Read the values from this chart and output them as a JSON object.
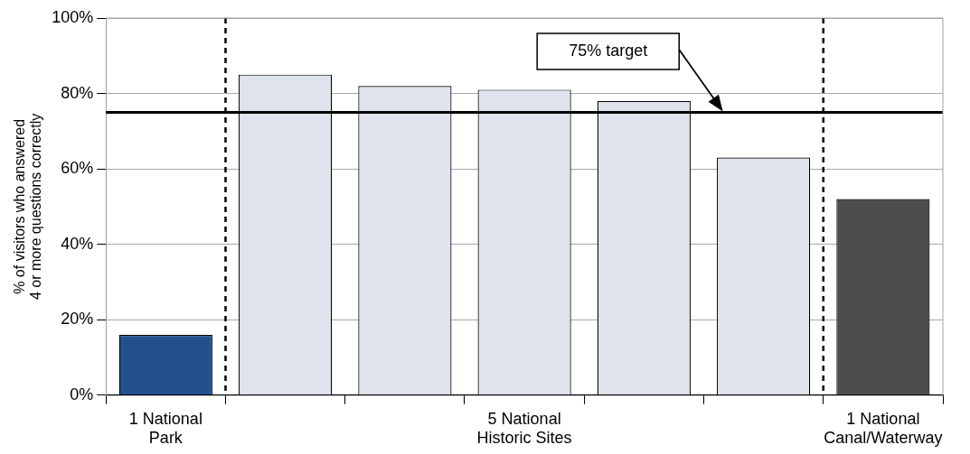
{
  "chart_data": {
    "type": "bar",
    "ylabel": "% of visitors who answered 4 or more questions correctly",
    "categories": [
      "1 National Park",
      null,
      null,
      "5 National Historic Sites",
      null,
      null,
      "1 National Canal/Waterway"
    ],
    "values": [
      16,
      85,
      82,
      81,
      78,
      63,
      52
    ],
    "colors": [
      "#23508c",
      "#dfe3ec",
      "#dfe3ec",
      "#dfe3ec",
      "#dfe3ec",
      "#dfe3ec",
      "#4d4d4d"
    ],
    "ylim": [
      0,
      100
    ],
    "yticks": [
      {
        "value": 0,
        "label": "0%"
      },
      {
        "value": 20,
        "label": "20%"
      },
      {
        "value": 40,
        "label": "40%"
      },
      {
        "value": 60,
        "label": "60%"
      },
      {
        "value": 80,
        "label": "80%"
      },
      {
        "value": 100,
        "label": "100%"
      }
    ],
    "grid": "y",
    "legend": false,
    "ref_lines": [
      {
        "axis": "y",
        "value": 75,
        "label": "75% target",
        "color": "#000000",
        "line_style": "solid"
      }
    ]
  }
}
